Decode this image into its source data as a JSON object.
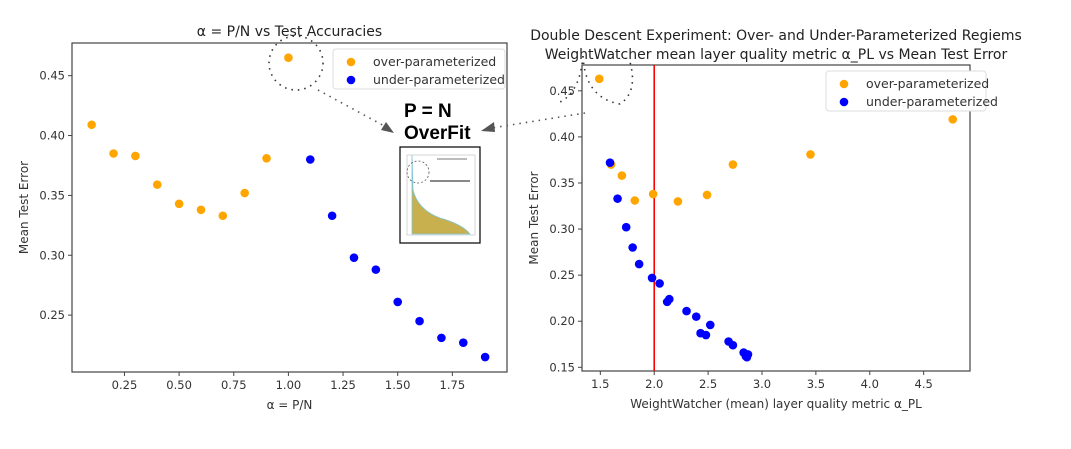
{
  "colors": {
    "over": "#FFA500",
    "under": "#0000FF",
    "vline": "#FF0000"
  },
  "annotation": {
    "line1": "P = N",
    "line2": "OverFit",
    "inset": "ESD of training data covariance matrix (thumbnail)"
  },
  "chart_data": [
    {
      "type": "scatter",
      "title": "α = P/N vs Test Accuracies",
      "xlabel": "α = P/N",
      "ylabel": "Mean Test Error",
      "xlim": [
        0.01,
        2.0
      ],
      "ylim": [
        0.2025,
        0.4773
      ],
      "xticks": [
        "0.25",
        "0.50",
        "0.75",
        "1.00",
        "1.25",
        "1.50",
        "1.75"
      ],
      "yticks": [
        "0.25",
        "0.30",
        "0.35",
        "0.40",
        "0.45"
      ],
      "legend": "top-right",
      "grid": false,
      "series": [
        {
          "name": "over-parameterized",
          "color": "#FFA500",
          "x": [
            0.1,
            0.2,
            0.3,
            0.4,
            0.5,
            0.6,
            0.7,
            0.8,
            0.9,
            1.0
          ],
          "y": [
            0.409,
            0.385,
            0.383,
            0.359,
            0.343,
            0.338,
            0.333,
            0.352,
            0.381,
            0.465
          ]
        },
        {
          "name": "under-parameterized",
          "color": "#0000FF",
          "x": [
            1.1,
            1.2,
            1.3,
            1.4,
            1.5,
            1.6,
            1.7,
            1.8,
            1.9
          ],
          "y": [
            0.38,
            0.333,
            0.298,
            0.288,
            0.261,
            0.245,
            0.231,
            0.227,
            0.215
          ]
        }
      ]
    },
    {
      "type": "scatter",
      "title": "Double Descent Experiment: Over- and Under-Parameterized Regiems",
      "subtitle": "WeightWatcher mean layer quality metric α_PL  vs Mean Test Error",
      "xlabel": "WeightWatcher (mean) layer quality metric α_PL",
      "ylabel": "Mean Test Error",
      "xlim": [
        1.33,
        4.93
      ],
      "ylim": [
        0.146,
        0.478
      ],
      "xticks": [
        "1.5",
        "2.0",
        "2.5",
        "3.0",
        "3.5",
        "4.0",
        "4.5"
      ],
      "yticks": [
        "0.15",
        "0.20",
        "0.25",
        "0.30",
        "0.35",
        "0.40",
        "0.45"
      ],
      "vline": 2.0,
      "legend": "top-right",
      "grid": false,
      "series": [
        {
          "name": "over-parameterized",
          "color": "#FFA500",
          "x": [
            1.49,
            1.6,
            1.7,
            1.82,
            1.99,
            2.22,
            2.49,
            2.73,
            3.45,
            4.77
          ],
          "y": [
            0.463,
            0.37,
            0.358,
            0.331,
            0.338,
            0.33,
            0.337,
            0.37,
            0.381,
            0.419
          ]
        },
        {
          "name": "under-parameterized",
          "color": "#0000FF",
          "x": [
            1.59,
            1.66,
            1.74,
            1.8,
            1.86,
            1.98,
            2.05,
            2.12,
            2.14,
            2.3,
            2.39,
            2.43,
            2.48,
            2.52,
            2.69,
            2.73,
            2.83,
            2.85,
            2.87,
            2.86
          ],
          "y": [
            0.372,
            0.333,
            0.302,
            0.28,
            0.262,
            0.247,
            0.241,
            0.221,
            0.224,
            0.211,
            0.205,
            0.187,
            0.185,
            0.196,
            0.178,
            0.174,
            0.166,
            0.162,
            0.164,
            0.161
          ]
        }
      ]
    }
  ]
}
